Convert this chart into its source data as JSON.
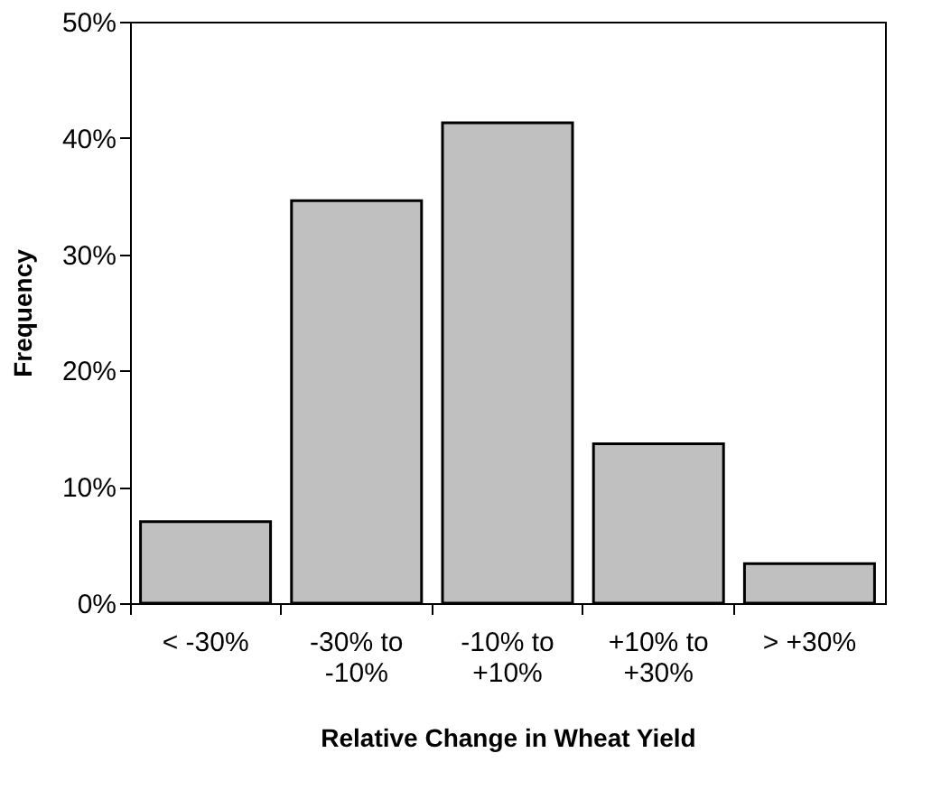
{
  "chart_data": {
    "type": "bar",
    "xlabel": "Relative Change in Wheat Yield",
    "ylabel": "Frequency",
    "categories": [
      "< -30%",
      "-30% to\n-10%",
      "-10% to\n+10%",
      "+10% to\n+30%",
      "> +30%"
    ],
    "values": [
      7.0,
      34.6,
      41.3,
      13.7,
      3.4
    ],
    "color": "#c0c0c0",
    "ylim": [
      0,
      50
    ],
    "yticks": [
      {
        "value": 0,
        "label": "0%"
      },
      {
        "value": 10,
        "label": "10%"
      },
      {
        "value": 20,
        "label": "20%"
      },
      {
        "value": 30,
        "label": "30%"
      },
      {
        "value": 40,
        "label": "40%"
      },
      {
        "value": 50,
        "label": "50%"
      }
    ],
    "grid": false
  }
}
